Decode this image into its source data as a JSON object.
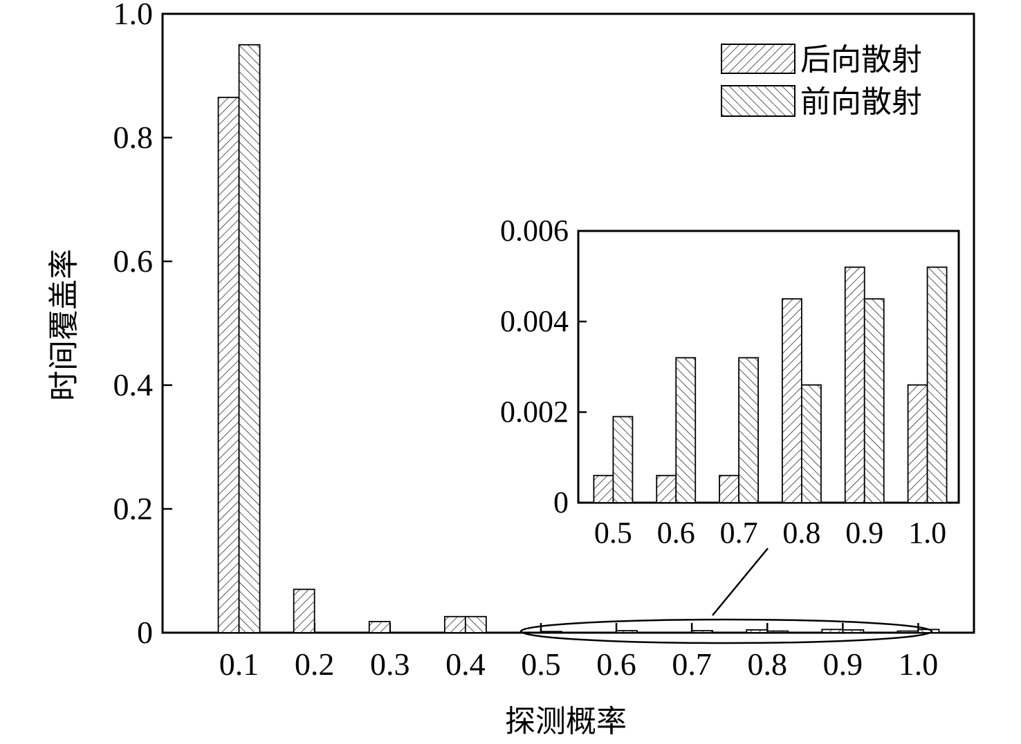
{
  "chart_data": [
    {
      "type": "bar",
      "xlabel": "探测概率",
      "ylabel": "时间覆盖率",
      "categories": [
        "0.1",
        "0.2",
        "0.3",
        "0.4",
        "0.5",
        "0.6",
        "0.7",
        "0.8",
        "0.9",
        "1.0"
      ],
      "ylim": [
        0,
        1.0
      ],
      "yticks": [
        "0",
        "0.2",
        "0.4",
        "0.6",
        "0.8",
        "1.0"
      ],
      "series": [
        {
          "name": "后向散射",
          "values": [
            0.865,
            0.07,
            0.018,
            0.026,
            0.0006,
            0.0006,
            0.0006,
            0.0045,
            0.0052,
            0.0026
          ],
          "pattern": "forward-diagonal-hatch"
        },
        {
          "name": "前向散射",
          "values": [
            0.95,
            0.0,
            0.0,
            0.026,
            0.0019,
            0.0032,
            0.0032,
            0.0026,
            0.0045,
            0.0052
          ],
          "pattern": "backward-diagonal-hatch"
        }
      ],
      "legend": "top-right",
      "grid": false
    },
    {
      "type": "bar",
      "role": "inset",
      "categories": [
        "0.5",
        "0.6",
        "0.7",
        "0.8",
        "0.9",
        "1.0"
      ],
      "ylim": [
        0,
        0.006
      ],
      "yticks": [
        "0",
        "0.002",
        "0.004",
        "0.006"
      ],
      "series": [
        {
          "name": "后向散射",
          "values": [
            0.0006,
            0.0006,
            0.0006,
            0.0045,
            0.0052,
            0.0026
          ]
        },
        {
          "name": "前向散射",
          "values": [
            0.0019,
            0.0032,
            0.0032,
            0.0026,
            0.0045,
            0.0052
          ]
        }
      ],
      "grid": false
    }
  ],
  "colors": {
    "ink": "#000000",
    "bar_fill": "#ffffff"
  }
}
